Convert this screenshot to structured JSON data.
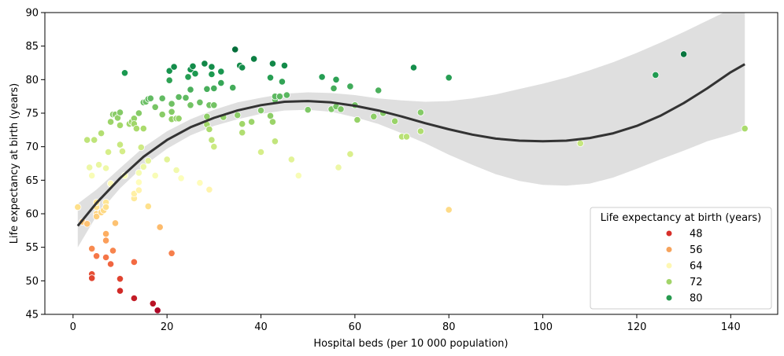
{
  "chart_data": {
    "type": "scatter",
    "xlabel": "Hospital beds (per 10 000 population)",
    "ylabel": "Life expectancy at birth (years)",
    "xlim": [
      -6,
      150
    ],
    "ylim": [
      45,
      90
    ],
    "xticks": [
      0,
      20,
      40,
      60,
      80,
      100,
      120,
      140
    ],
    "yticks": [
      45,
      50,
      55,
      60,
      65,
      70,
      75,
      80,
      85,
      90
    ],
    "grid": false,
    "legend": {
      "title": "Life expectancy at birth (years)",
      "placement": "bottom-right",
      "entries": [
        {
          "label": "48",
          "value": 48,
          "color": "#d7302a"
        },
        {
          "label": "56",
          "value": 56,
          "color": "#f6a35c"
        },
        {
          "label": "64",
          "value": 64,
          "color": "#fef7b3"
        },
        {
          "label": "72",
          "value": 72,
          "color": "#a2d469"
        },
        {
          "label": "80",
          "value": 80,
          "color": "#279a4f"
        }
      ]
    },
    "colormap": "RdYlGn",
    "color_range": [
      45,
      85
    ],
    "points": [
      [
        1,
        61
      ],
      [
        2,
        58.8
      ],
      [
        3,
        58.5
      ],
      [
        3,
        71
      ],
      [
        3.5,
        66.9
      ],
      [
        4,
        54.8
      ],
      [
        4,
        51
      ],
      [
        4,
        50.4
      ],
      [
        4,
        65.7
      ],
      [
        4.5,
        71
      ],
      [
        5,
        53.7
      ],
      [
        5,
        61
      ],
      [
        5,
        60
      ],
      [
        5,
        59.6
      ],
      [
        5,
        61.7
      ],
      [
        5.5,
        67.3
      ],
      [
        6,
        60.2
      ],
      [
        6,
        72
      ],
      [
        6.5,
        60.5
      ],
      [
        7,
        61.7
      ],
      [
        7,
        61
      ],
      [
        7,
        57
      ],
      [
        7,
        56
      ],
      [
        7,
        53.5
      ],
      [
        7,
        66.8
      ],
      [
        7.5,
        69.2
      ],
      [
        8,
        64.5
      ],
      [
        8,
        73.7
      ],
      [
        8,
        52.5
      ],
      [
        8.5,
        74.8
      ],
      [
        8.5,
        54.5
      ],
      [
        9,
        58.6
      ],
      [
        9,
        74.8
      ],
      [
        9.5,
        74.3
      ],
      [
        10,
        75.1
      ],
      [
        10,
        50.3
      ],
      [
        10,
        48.5
      ],
      [
        10,
        70.3
      ],
      [
        10.5,
        69.3
      ],
      [
        10,
        73.2
      ],
      [
        11,
        81
      ],
      [
        11,
        65.7
      ],
      [
        12,
        73.4
      ],
      [
        12.5,
        73.7
      ],
      [
        13,
        74.2
      ],
      [
        13,
        73.4
      ],
      [
        13,
        52.8
      ],
      [
        13,
        47.4
      ],
      [
        13,
        62.3
      ],
      [
        13,
        63
      ],
      [
        13.5,
        72.7
      ],
      [
        14,
        66.1
      ],
      [
        14,
        64.7
      ],
      [
        14,
        63.5
      ],
      [
        14,
        75
      ],
      [
        14.5,
        69.9
      ],
      [
        15,
        76.6
      ],
      [
        15,
        67
      ],
      [
        15,
        72.7
      ],
      [
        15.5,
        76.7
      ],
      [
        16,
        77.1
      ],
      [
        16,
        61.1
      ],
      [
        16,
        67.9
      ],
      [
        16.5,
        77.2
      ],
      [
        17,
        46.6
      ],
      [
        17.5,
        65.7
      ],
      [
        17.5,
        75.9
      ],
      [
        18,
        45.6
      ],
      [
        18.5,
        58
      ],
      [
        19,
        77.2
      ],
      [
        19,
        74.8
      ],
      [
        20,
        68.1
      ],
      [
        20.5,
        81.3
      ],
      [
        20.5,
        79.9
      ],
      [
        21,
        74.1
      ],
      [
        21,
        75.2
      ],
      [
        21,
        76.4
      ],
      [
        21,
        54.2
      ],
      [
        21,
        54.1
      ],
      [
        21.5,
        81.9
      ],
      [
        22,
        74.2
      ],
      [
        22,
        66.5
      ],
      [
        22.5,
        74.2
      ],
      [
        22.5,
        77.4
      ],
      [
        23,
        65.3
      ],
      [
        24,
        77.3
      ],
      [
        24.5,
        80.4
      ],
      [
        25,
        81.5
      ],
      [
        25,
        78.5
      ],
      [
        25,
        76.2
      ],
      [
        25.5,
        82
      ],
      [
        26,
        80.9
      ],
      [
        27,
        64.6
      ],
      [
        27,
        76.6
      ],
      [
        28,
        82.4
      ],
      [
        28.5,
        74.5
      ],
      [
        28.5,
        73.3
      ],
      [
        28.5,
        78.6
      ],
      [
        29,
        63.6
      ],
      [
        29,
        76.2
      ],
      [
        29,
        72.6
      ],
      [
        29.5,
        71
      ],
      [
        29.5,
        80.8
      ],
      [
        29.5,
        81.9
      ],
      [
        30,
        78.7
      ],
      [
        30,
        76.2
      ],
      [
        30,
        70
      ],
      [
        31.5,
        79.5
      ],
      [
        31.5,
        81.2
      ],
      [
        32,
        74.4
      ],
      [
        34,
        78.8
      ],
      [
        34.5,
        84.5
      ],
      [
        35,
        74.7
      ],
      [
        35.5,
        82.1
      ],
      [
        36,
        81.8
      ],
      [
        36,
        72.1
      ],
      [
        36,
        73.4
      ],
      [
        38,
        73.7
      ],
      [
        38.5,
        83.1
      ],
      [
        40,
        75.4
      ],
      [
        40,
        69.2
      ],
      [
        42,
        80.3
      ],
      [
        42,
        74.6
      ],
      [
        42.5,
        73.7
      ],
      [
        42.5,
        82.4
      ],
      [
        43,
        77
      ],
      [
        43,
        77.5
      ],
      [
        43,
        70.8
      ],
      [
        44,
        77.5
      ],
      [
        44.5,
        79.7
      ],
      [
        45,
        82.1
      ],
      [
        45.5,
        77.7
      ],
      [
        46.5,
        68.1
      ],
      [
        48,
        65.7
      ],
      [
        50,
        75.5
      ],
      [
        53,
        80.4
      ],
      [
        55,
        75.6
      ],
      [
        55.5,
        78.7
      ],
      [
        56,
        80
      ],
      [
        56,
        76
      ],
      [
        56.5,
        66.9
      ],
      [
        57,
        75.6
      ],
      [
        59,
        79
      ],
      [
        59,
        68.9
      ],
      [
        60,
        76.2
      ],
      [
        60.5,
        74
      ],
      [
        64,
        74.5
      ],
      [
        65,
        78.4
      ],
      [
        66,
        75
      ],
      [
        68.5,
        73.8
      ],
      [
        70,
        71.5
      ],
      [
        71,
        71.5
      ],
      [
        72.5,
        81.8
      ],
      [
        74,
        75.1
      ],
      [
        74,
        72.3
      ],
      [
        80,
        80.3
      ],
      [
        80,
        60.6
      ],
      [
        108,
        70.5
      ],
      [
        124,
        80.7
      ],
      [
        130,
        83.8
      ],
      [
        143,
        72.7
      ]
    ],
    "regression": {
      "order": 3,
      "fit": [
        [
          1,
          58.2
        ],
        [
          5,
          61.6
        ],
        [
          10,
          65.3
        ],
        [
          15,
          68.5
        ],
        [
          20,
          71
        ],
        [
          25,
          72.9
        ],
        [
          30,
          74.3
        ],
        [
          35,
          75.4
        ],
        [
          40,
          76.2
        ],
        [
          45,
          76.7
        ],
        [
          50,
          76.8
        ],
        [
          55,
          76.6
        ],
        [
          60,
          76.1
        ],
        [
          65,
          75.4
        ],
        [
          70,
          74.5
        ],
        [
          75,
          73.5
        ],
        [
          80,
          72.6
        ],
        [
          85,
          71.8
        ],
        [
          90,
          71.2
        ],
        [
          95,
          70.9
        ],
        [
          100,
          70.8
        ],
        [
          105,
          70.9
        ],
        [
          110,
          71.3
        ],
        [
          115,
          72
        ],
        [
          120,
          73.1
        ],
        [
          125,
          74.6
        ],
        [
          130,
          76.5
        ],
        [
          135,
          78.7
        ],
        [
          140,
          81.1
        ],
        [
          143,
          82.3
        ]
      ],
      "ci_upper": [
        [
          1,
          61.5
        ],
        [
          5,
          63.6
        ],
        [
          10,
          66.8
        ],
        [
          15,
          69.9
        ],
        [
          20,
          72.3
        ],
        [
          25,
          74.1
        ],
        [
          30,
          75.5
        ],
        [
          35,
          76.6
        ],
        [
          40,
          77.3
        ],
        [
          45,
          77.9
        ],
        [
          50,
          78.1
        ],
        [
          55,
          78
        ],
        [
          60,
          77.7
        ],
        [
          65,
          77.2
        ],
        [
          70,
          76.9
        ],
        [
          75,
          76.7
        ],
        [
          80,
          76.8
        ],
        [
          85,
          77.2
        ],
        [
          90,
          77.8
        ],
        [
          95,
          78.6
        ],
        [
          100,
          79.4
        ],
        [
          105,
          80.3
        ],
        [
          110,
          81.4
        ],
        [
          115,
          82.6
        ],
        [
          120,
          84
        ],
        [
          125,
          85.5
        ],
        [
          130,
          87.1
        ],
        [
          135,
          88.8
        ],
        [
          140,
          90.5
        ],
        [
          143,
          91.6
        ]
      ],
      "ci_lower": [
        [
          1,
          55
        ],
        [
          5,
          59.7
        ],
        [
          10,
          63.8
        ],
        [
          15,
          67.1
        ],
        [
          20,
          69.7
        ],
        [
          25,
          71.7
        ],
        [
          30,
          73.1
        ],
        [
          35,
          74.1
        ],
        [
          40,
          74.9
        ],
        [
          45,
          75.4
        ],
        [
          50,
          75.5
        ],
        [
          55,
          75.2
        ],
        [
          60,
          74.4
        ],
        [
          65,
          73.4
        ],
        [
          70,
          72
        ],
        [
          75,
          70.5
        ],
        [
          80,
          68.8
        ],
        [
          85,
          67.3
        ],
        [
          90,
          65.9
        ],
        [
          95,
          64.9
        ],
        [
          100,
          64.3
        ],
        [
          105,
          64.2
        ],
        [
          110,
          64.5
        ],
        [
          115,
          65.4
        ],
        [
          120,
          66.7
        ],
        [
          125,
          68.1
        ],
        [
          130,
          69.4
        ],
        [
          135,
          70.8
        ],
        [
          140,
          71.8
        ],
        [
          143,
          72.5
        ]
      ]
    }
  }
}
